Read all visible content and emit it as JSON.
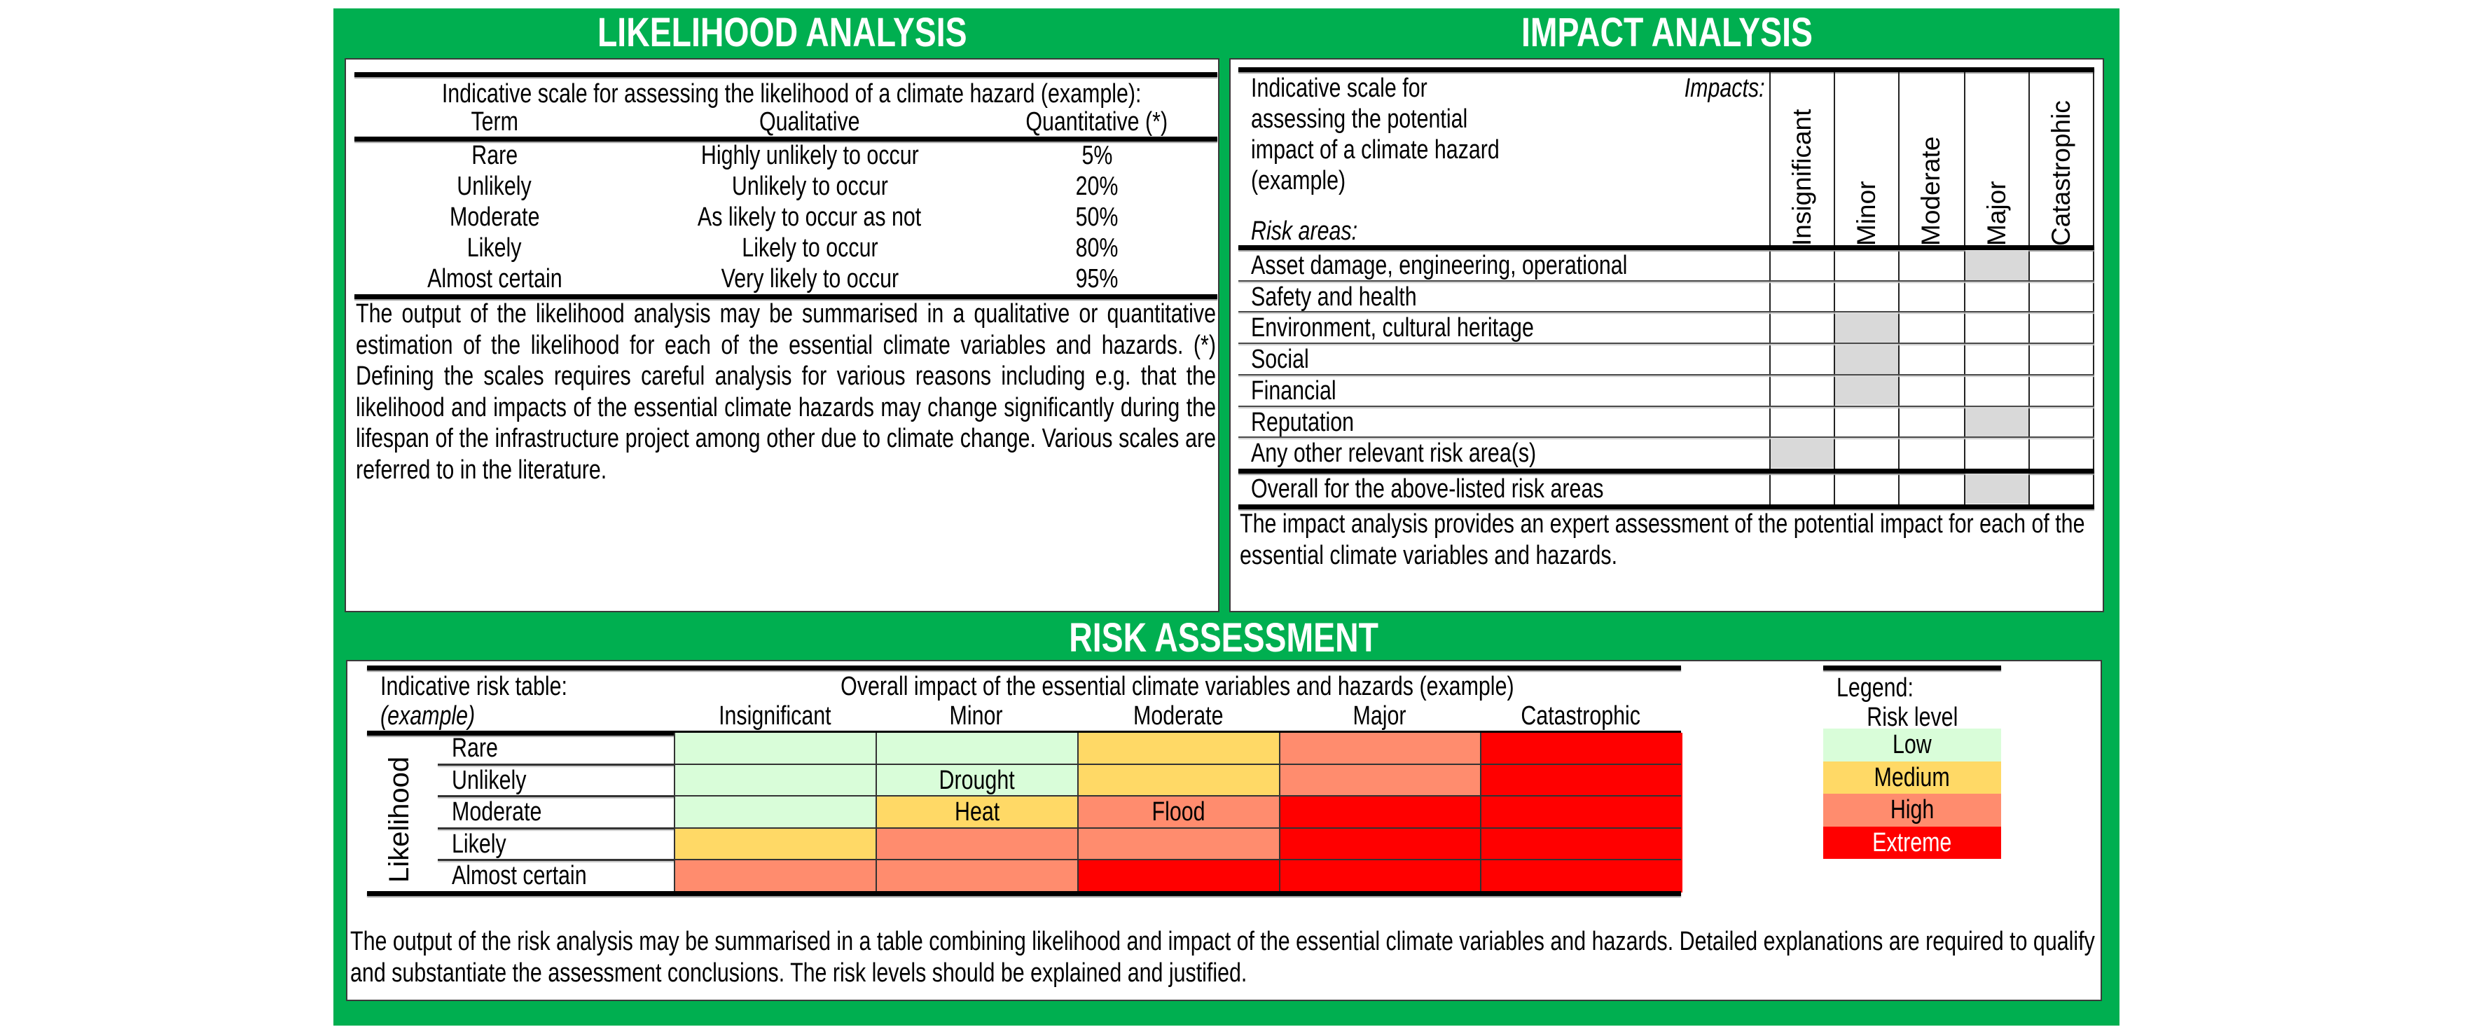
{
  "colors": {
    "frame_green": "#00AF50",
    "shade_gray": "#D9D9D9",
    "risk_low": "#D9FDD9",
    "risk_medium": "#FFD966",
    "risk_high": "#FF8C6E",
    "risk_extreme": "#FF0000"
  },
  "likelihood": {
    "title": "LIKELIHOOD ANALYSIS",
    "table_caption": "Indicative scale for assessing the likelihood of a climate hazard (example):",
    "columns": [
      "Term",
      "Qualitative",
      "Quantitative (*)"
    ],
    "rows": [
      {
        "term": "Rare",
        "qualitative": "Highly unlikely to occur",
        "quantitative": "5%"
      },
      {
        "term": "Unlikely",
        "qualitative": "Unlikely to occur",
        "quantitative": "20%"
      },
      {
        "term": "Moderate",
        "qualitative": "As likely to occur as not",
        "quantitative": "50%"
      },
      {
        "term": "Likely",
        "qualitative": "Likely to occur",
        "quantitative": "80%"
      },
      {
        "term": "Almost certain",
        "qualitative": "Very likely to occur",
        "quantitative": "95%"
      }
    ],
    "description": "The output of the likelihood analysis may be summarised in a qualitative or quantitative estimation of the likelihood for each of the essential climate variables and hazards. (*) Defining the scales requires careful analysis for various reasons including e.g. that the likelihood and impacts of the essential climate hazards may change significantly during the lifespan of the infrastructure project among other due to climate change. Various scales are referred to in the literature."
  },
  "impact": {
    "title": "IMPACT ANALYSIS",
    "caption_lines": [
      "Indicative scale for",
      "assessing the potential",
      "impact of a climate hazard",
      "(example)"
    ],
    "impacts_label": "Impacts:",
    "risk_areas_label": "Risk areas:",
    "columns": [
      "Insignificant",
      "Minor",
      "Moderate",
      "Major",
      "Catastrophic"
    ],
    "rows": [
      {
        "label": "Asset damage, engineering, operational",
        "selected": "Major"
      },
      {
        "label": "Safety and health",
        "selected": ""
      },
      {
        "label": "Environment, cultural heritage",
        "selected": "Minor"
      },
      {
        "label": "Social",
        "selected": "Minor"
      },
      {
        "label": "Financial",
        "selected": "Minor"
      },
      {
        "label": "Reputation",
        "selected": "Major"
      },
      {
        "label": "Any other relevant risk area(s)",
        "selected": "Insignificant"
      }
    ],
    "overall": {
      "label": "Overall for the above-listed risk areas",
      "selected": "Major"
    },
    "description": "The impact analysis provides an expert assessment of the potential impact for each of the essential climate variables and hazards."
  },
  "risk": {
    "title": "RISK ASSESSMENT",
    "table_label": "Indicative risk table:",
    "table_label_sub": "(example)",
    "impact_header": "Overall impact of the essential climate variables and hazards (example)",
    "columns": [
      "Insignificant",
      "Minor",
      "Moderate",
      "Major",
      "Catastrophic"
    ],
    "row_axis_label": "Likelihood",
    "rows": [
      {
        "label": "Rare",
        "levels": [
          "low",
          "low",
          "medium",
          "high",
          "extreme"
        ],
        "texts": [
          "",
          "",
          "",
          "",
          ""
        ]
      },
      {
        "label": "Unlikely",
        "levels": [
          "low",
          "low",
          "medium",
          "high",
          "extreme"
        ],
        "texts": [
          "",
          "Drought",
          "",
          "",
          ""
        ]
      },
      {
        "label": "Moderate",
        "levels": [
          "low",
          "medium",
          "high",
          "extreme",
          "extreme"
        ],
        "texts": [
          "",
          "Heat",
          "Flood",
          "",
          ""
        ]
      },
      {
        "label": "Likely",
        "levels": [
          "medium",
          "high",
          "high",
          "extreme",
          "extreme"
        ],
        "texts": [
          "",
          "",
          "",
          "",
          ""
        ]
      },
      {
        "label": "Almost certain",
        "levels": [
          "high",
          "high",
          "extreme",
          "extreme",
          "extreme"
        ],
        "texts": [
          "",
          "",
          "",
          "",
          ""
        ]
      }
    ],
    "legend": {
      "title": "Legend:",
      "subtitle": "Risk level",
      "items": [
        {
          "key": "low",
          "label": "Low"
        },
        {
          "key": "medium",
          "label": "Medium"
        },
        {
          "key": "high",
          "label": "High"
        },
        {
          "key": "extreme",
          "label": "Extreme"
        }
      ]
    },
    "description": "The output of the risk analysis may be summarised in a table combining likelihood and impact of the essential climate variables and hazards.  Detailed explanations are required to qualify and substantiate the assessment conclusions. The risk levels should be explained and justified."
  }
}
